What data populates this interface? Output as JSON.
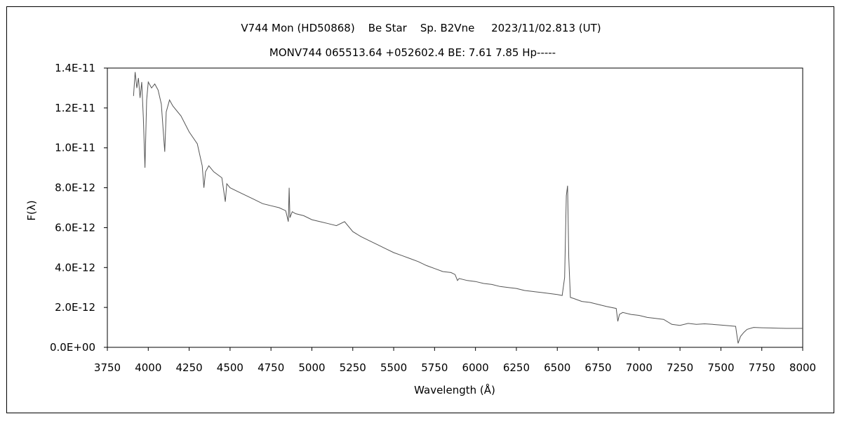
{
  "chart_data": {
    "type": "line",
    "title": "V744 Mon (HD50868)    Be Star    Sp. B2Vne     2023/11/02.813 (UT)",
    "subtitle": "MONV744 065513.64 +052602.4 BE: 7.61 7.85 Hp-----",
    "xlabel": "Wavelength (Å)",
    "ylabel": "F(λ)",
    "xlim": [
      3750,
      8000
    ],
    "ylim": [
      0,
      1.4e-11
    ],
    "x_ticks": [
      3750,
      4000,
      4250,
      4500,
      4750,
      5000,
      5250,
      5500,
      5750,
      6000,
      6250,
      6500,
      6750,
      7000,
      7250,
      7500,
      7750,
      8000
    ],
    "x_tick_labels": [
      "3750",
      "4000",
      "4250",
      "4500",
      "4750",
      "5000",
      "5250",
      "5500",
      "5750",
      "6000",
      "6250",
      "6500",
      "6750",
      "7000",
      "7250",
      "7500",
      "7750",
      "8000"
    ],
    "y_ticks": [
      0,
      2e-12,
      4e-12,
      6e-12,
      8e-12,
      1e-11,
      1.2e-11,
      1.4e-11
    ],
    "y_tick_labels": [
      "0.0E+00",
      "2.0E-12",
      "4.0E-12",
      "6.0E-12",
      "8.0E-12",
      "1.0E-11",
      "1.2E-11",
      "1.4E-11"
    ],
    "grid": false,
    "legend": "none",
    "line_color": "#555555",
    "series": [
      {
        "x": [
          3910,
          3920,
          3930,
          3940,
          3950,
          3960,
          3970,
          3980,
          3990,
          4000,
          4020,
          4040,
          4060,
          4080,
          4101,
          4110,
          4130,
          4150,
          4200,
          4250,
          4300,
          4330,
          4340,
          4350,
          4370,
          4400,
          4450,
          4471,
          4480,
          4500,
          4550,
          4600,
          4650,
          4700,
          4750,
          4800,
          4840,
          4856,
          4861,
          4866,
          4880,
          4900,
          4950,
          5000,
          5050,
          5100,
          5150,
          5200,
          5250,
          5300,
          5350,
          5400,
          5450,
          5500,
          5550,
          5600,
          5650,
          5700,
          5750,
          5800,
          5850,
          5875,
          5890,
          5900,
          5950,
          6000,
          6050,
          6100,
          6150,
          6200,
          6250,
          6300,
          6350,
          6400,
          6450,
          6500,
          6530,
          6545,
          6555,
          6563,
          6570,
          6580,
          6600,
          6650,
          6700,
          6750,
          6800,
          6860,
          6870,
          6880,
          6900,
          6950,
          7000,
          7050,
          7100,
          7150,
          7200,
          7250,
          7300,
          7350,
          7400,
          7450,
          7500,
          7550,
          7590,
          7605,
          7620,
          7640,
          7660,
          7700,
          7750,
          7800,
          7850,
          7900,
          7950,
          8000
        ],
        "y": [
          1.26e-11,
          1.38e-11,
          1.3e-11,
          1.35e-11,
          1.25e-11,
          1.33e-11,
          1.15e-11,
          9e-12,
          1.24e-11,
          1.33e-11,
          1.3e-11,
          1.32e-11,
          1.29e-11,
          1.22e-11,
          9.8e-12,
          1.18e-11,
          1.24e-11,
          1.21e-11,
          1.16e-11,
          1.08e-11,
          1.02e-11,
          9.1e-12,
          8e-12,
          8.8e-12,
          9.1e-12,
          8.8e-12,
          8.5e-12,
          7.3e-12,
          8.2e-12,
          8e-12,
          7.8e-12,
          7.6e-12,
          7.4e-12,
          7.2e-12,
          7.1e-12,
          7e-12,
          6.85e-12,
          6.3e-12,
          8e-12,
          6.5e-12,
          6.8e-12,
          6.7e-12,
          6.6e-12,
          6.4e-12,
          6.3e-12,
          6.2e-12,
          6.1e-12,
          6.3e-12,
          5.8e-12,
          5.55e-12,
          5.35e-12,
          5.15e-12,
          4.95e-12,
          4.75e-12,
          4.6e-12,
          4.45e-12,
          4.3e-12,
          4.1e-12,
          3.95e-12,
          3.8e-12,
          3.75e-12,
          3.65e-12,
          3.35e-12,
          3.45e-12,
          3.35e-12,
          3.3e-12,
          3.2e-12,
          3.15e-12,
          3.05e-12,
          3e-12,
          2.95e-12,
          2.85e-12,
          2.8e-12,
          2.75e-12,
          2.7e-12,
          2.65e-12,
          2.6e-12,
          3.5e-12,
          7.6e-12,
          8.1e-12,
          4.5e-12,
          2.5e-12,
          2.45e-12,
          2.3e-12,
          2.25e-12,
          2.15e-12,
          2.05e-12,
          1.95e-12,
          1.3e-12,
          1.65e-12,
          1.75e-12,
          1.65e-12,
          1.6e-12,
          1.5e-12,
          1.45e-12,
          1.4e-12,
          1.15e-12,
          1.1e-12,
          1.2e-12,
          1.15e-12,
          1.18e-12,
          1.15e-12,
          1.12e-12,
          1.08e-12,
          1.05e-12,
          2e-13,
          5.5e-13,
          7.5e-13,
          9e-13,
          1e-12,
          9.8e-13,
          9.7e-13,
          9.6e-13,
          9.5e-13,
          9.5e-13,
          9.5e-13
        ]
      }
    ]
  }
}
